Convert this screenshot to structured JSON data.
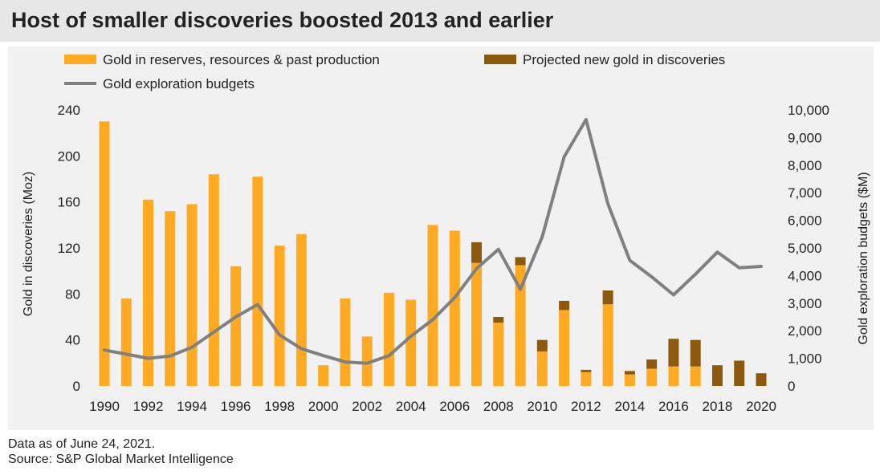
{
  "title": "Host of smaller discoveries boosted 2013 and earlier",
  "footer": {
    "line1": "Data as of June 24, 2021.",
    "line2": "Source: S&P Global Market Intelligence"
  },
  "colors": {
    "reserves": "#FFAA22",
    "projected": "#8B5A0E",
    "budget": "#808080",
    "panel": "#F1F1F1"
  },
  "chart_data": {
    "type": "bar",
    "title": "Host of smaller discoveries boosted 2013 and earlier",
    "xlabel": "",
    "ylabel": "Gold in discoveries (Moz)",
    "y2label": "Gold exploration budgets ($M)",
    "ylim": [
      0,
      240
    ],
    "y2lim": [
      0,
      10000
    ],
    "yticks": [
      "0",
      "40",
      "80",
      "120",
      "160",
      "200",
      "240"
    ],
    "y2ticks": [
      "0",
      "1,000",
      "2,000",
      "3,000",
      "4,000",
      "5,000",
      "6,000",
      "7,000",
      "8,000",
      "9,000",
      "10,000"
    ],
    "xtick_labels": [
      "1990",
      "1992",
      "1994",
      "1996",
      "1998",
      "2000",
      "2002",
      "2004",
      "2006",
      "2008",
      "2010",
      "2012",
      "2014",
      "2016",
      "2018",
      "2020"
    ],
    "legend_position": "top",
    "x": [
      1990,
      1991,
      1992,
      1993,
      1994,
      1995,
      1996,
      1997,
      1998,
      1999,
      2000,
      2001,
      2002,
      2003,
      2004,
      2005,
      2006,
      2007,
      2008,
      2009,
      2010,
      2011,
      2012,
      2013,
      2014,
      2015,
      2016,
      2017,
      2018,
      2019,
      2020
    ],
    "series": [
      {
        "name": "Gold in reserves, resources & past production",
        "type": "bar",
        "stack": "gold",
        "axis": "left",
        "values": [
          230,
          76,
          162,
          152,
          158,
          184,
          104,
          182,
          122,
          132,
          18,
          76,
          43,
          81,
          75,
          140,
          135,
          107,
          55,
          105,
          30,
          66,
          12,
          71,
          10,
          15,
          17,
          17,
          0,
          0,
          0
        ]
      },
      {
        "name": "Projected new gold in discoveries",
        "type": "bar",
        "stack": "gold",
        "axis": "left",
        "values": [
          0,
          0,
          0,
          0,
          0,
          0,
          0,
          0,
          0,
          0,
          0,
          0,
          0,
          0,
          0,
          0,
          0,
          18,
          5,
          7,
          10,
          8,
          2,
          12,
          3,
          8,
          24,
          23,
          18,
          22,
          11
        ]
      },
      {
        "name": "Gold exploration budgets",
        "type": "line",
        "axis": "right",
        "values": [
          1300,
          1150,
          1000,
          1080,
          1400,
          1950,
          2500,
          2950,
          1850,
          1350,
          1100,
          870,
          820,
          1100,
          1800,
          2400,
          3200,
          4250,
          4950,
          3500,
          5400,
          8300,
          9650,
          6600,
          4550,
          3950,
          3300,
          4050,
          4850,
          4280,
          4330
        ]
      }
    ]
  }
}
